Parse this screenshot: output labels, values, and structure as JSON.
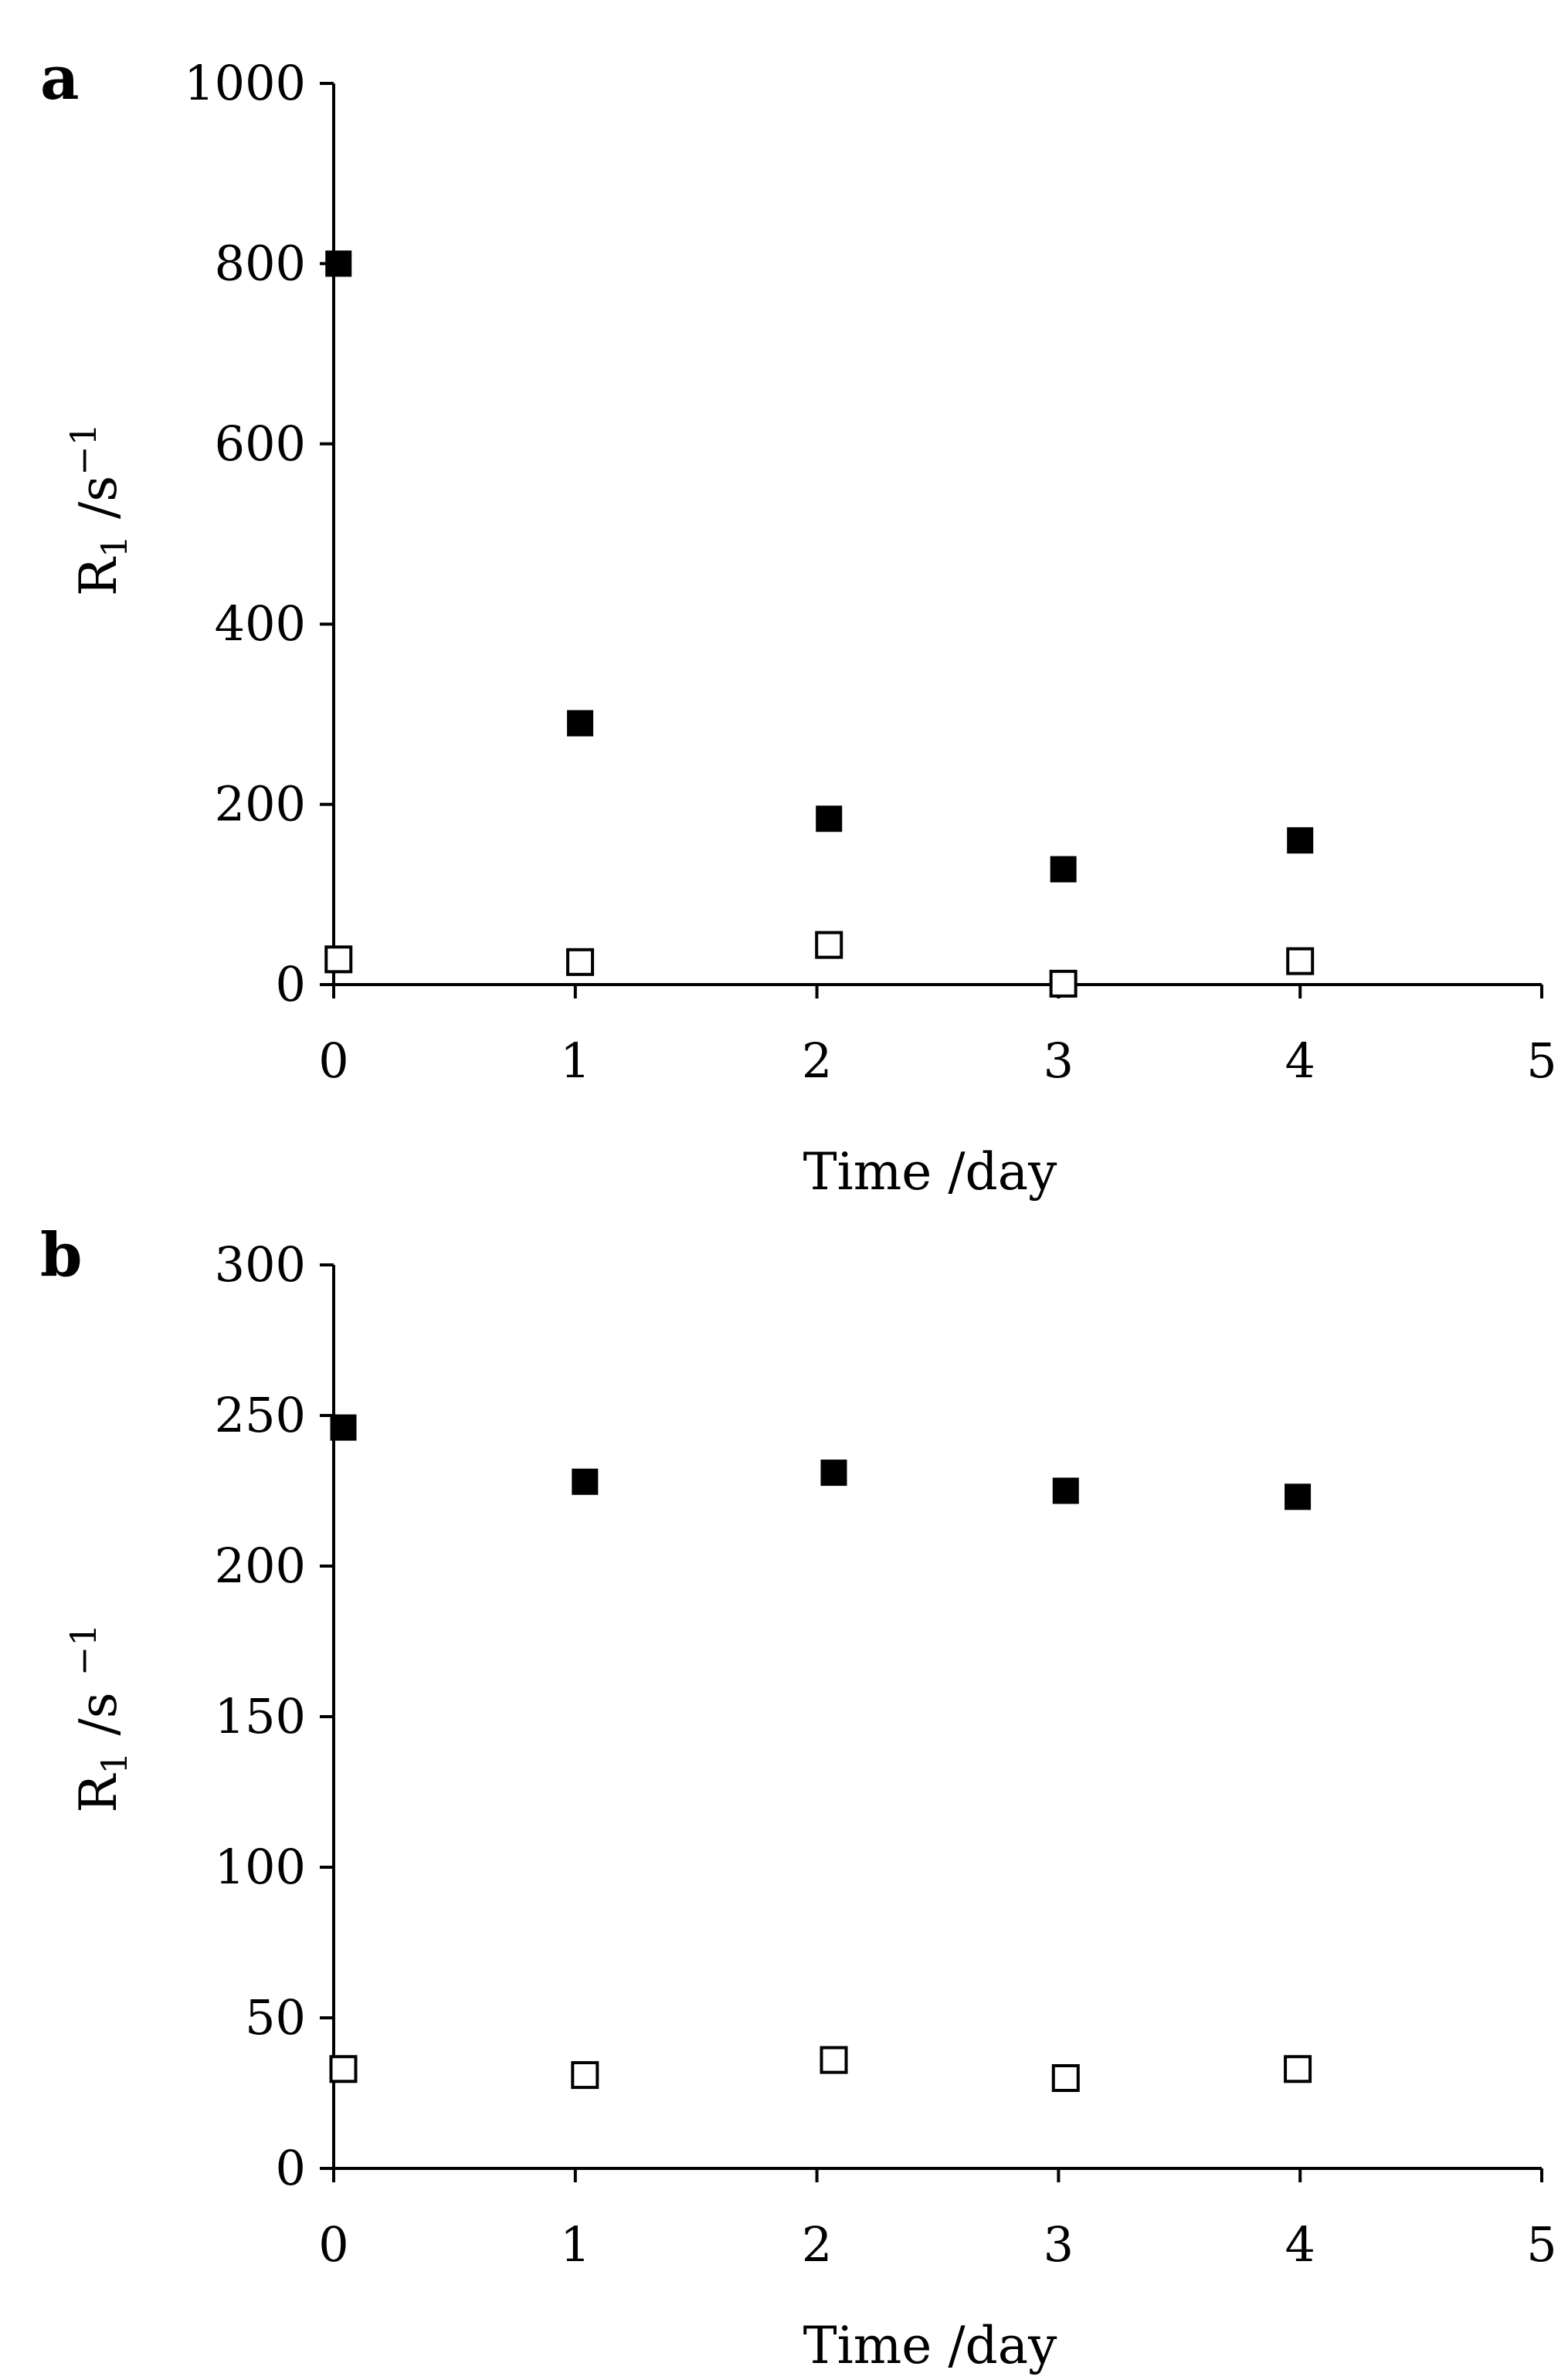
{
  "chart_data": [
    {
      "panel": "a",
      "type": "scatter",
      "xlabel": "Time /day",
      "ylabel_main": "R",
      "ylabel_sub": "1",
      "ylabel_unit": " /s",
      "ylabel_sup": "−1",
      "xlim": [
        0,
        5
      ],
      "ylim": [
        0,
        1000
      ],
      "xticks": [
        0,
        1,
        2,
        3,
        4,
        5
      ],
      "yticks": [
        0,
        200,
        400,
        600,
        800,
        1000
      ],
      "grid": false,
      "series": [
        {
          "marker": "filled-square",
          "color": "#000000",
          "points": [
            {
              "x": 0.02,
              "y": 800
            },
            {
              "x": 1.02,
              "y": 290
            },
            {
              "x": 2.05,
              "y": 184
            },
            {
              "x": 3.02,
              "y": 128
            },
            {
              "x": 4.0,
              "y": 160
            }
          ]
        },
        {
          "marker": "open-square",
          "color": "#000000",
          "points": [
            {
              "x": 0.02,
              "y": 28
            },
            {
              "x": 1.02,
              "y": 25
            },
            {
              "x": 2.05,
              "y": 44
            },
            {
              "x": 3.02,
              "y": 1
            },
            {
              "x": 4.0,
              "y": 26
            }
          ]
        }
      ]
    },
    {
      "panel": "b",
      "type": "scatter",
      "xlabel": "Time /day",
      "ylabel_main": "R",
      "ylabel_sub": "1",
      "ylabel_unit": " /s ",
      "ylabel_sup": "−1",
      "xlim": [
        0,
        5
      ],
      "ylim": [
        0,
        300
      ],
      "xticks": [
        0,
        1,
        2,
        3,
        4,
        5
      ],
      "yticks": [
        0,
        50,
        100,
        150,
        200,
        250,
        300
      ],
      "grid": false,
      "series": [
        {
          "marker": "filled-square",
          "color": "#000000",
          "points": [
            {
              "x": 0.04,
              "y": 246
            },
            {
              "x": 1.04,
              "y": 228
            },
            {
              "x": 2.07,
              "y": 231
            },
            {
              "x": 3.03,
              "y": 225
            },
            {
              "x": 3.99,
              "y": 223
            }
          ]
        },
        {
          "marker": "open-square",
          "color": "#000000",
          "points": [
            {
              "x": 0.04,
              "y": 33
            },
            {
              "x": 1.04,
              "y": 31
            },
            {
              "x": 2.07,
              "y": 36
            },
            {
              "x": 3.03,
              "y": 30
            },
            {
              "x": 3.99,
              "y": 33
            }
          ]
        }
      ]
    }
  ]
}
